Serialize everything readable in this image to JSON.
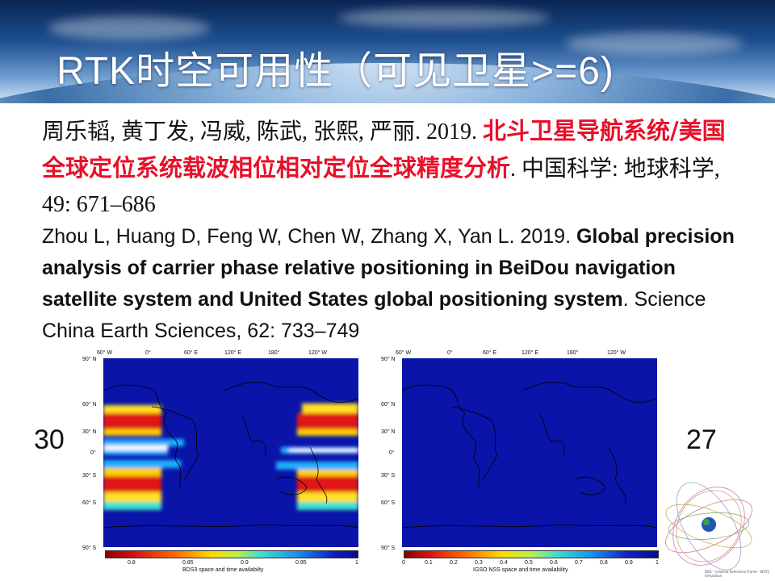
{
  "slide": {
    "title": "RTK时空可用性（可见卫星>=6)",
    "ref_cn_authors": "周乐韬, 黄丁发, 冯威, 陈武, 张熙, 严丽. 2019. ",
    "ref_cn_title": "北斗卫星导航系统/美国全球定位系统载波相位相对定位全球精度分析",
    "ref_cn_tail": ". 中国科学: 地球科学, 49: 671–686",
    "ref_en_authors": "Zhou L, Huang D, Feng W, Chen W, Zhang X, Yan L. 2019. ",
    "ref_en_title": "Global precision analysis of carrier phase relative positioning in BeiDou navigation satellite system and United States global positioning system",
    "ref_en_tail": ". Science China Earth Sciences, 62: 733–749",
    "left_count": "30",
    "right_count": "27"
  },
  "map_left": {
    "lon_labels": [
      "60° W",
      "0°",
      "60° E",
      "120° E",
      "180°",
      "120° W"
    ],
    "lat_labels": [
      "90° N",
      "60° N",
      "30° N",
      "0°",
      "30° S",
      "60° S",
      "90° S"
    ],
    "cbar_ticks": [
      "0.8",
      "0.85",
      "0.9",
      "0.95",
      "1"
    ],
    "caption": "BDS3 space and time availabilty"
  },
  "map_right": {
    "lon_labels": [
      "60° W",
      "0°",
      "60° E",
      "120° E",
      "180°",
      "120° W"
    ],
    "lat_labels": [
      "90° N",
      "60° N",
      "30° N",
      "0°",
      "30° S",
      "60° S",
      "90° S"
    ],
    "cbar_ticks": [
      "0",
      "0.1",
      "0.2",
      "0.3",
      "0.4",
      "0.5",
      "0.6",
      "0.7",
      "0.8",
      "0.9",
      "1"
    ],
    "caption": "IGSO NSS space and time availability"
  },
  "orbit_caption": "BDS - Celestial Reference Frame · WGTC Simulation",
  "colors": {
    "title": "#ffffff",
    "highlight": "#e8102a",
    "map_bg": "#0a14a8"
  }
}
